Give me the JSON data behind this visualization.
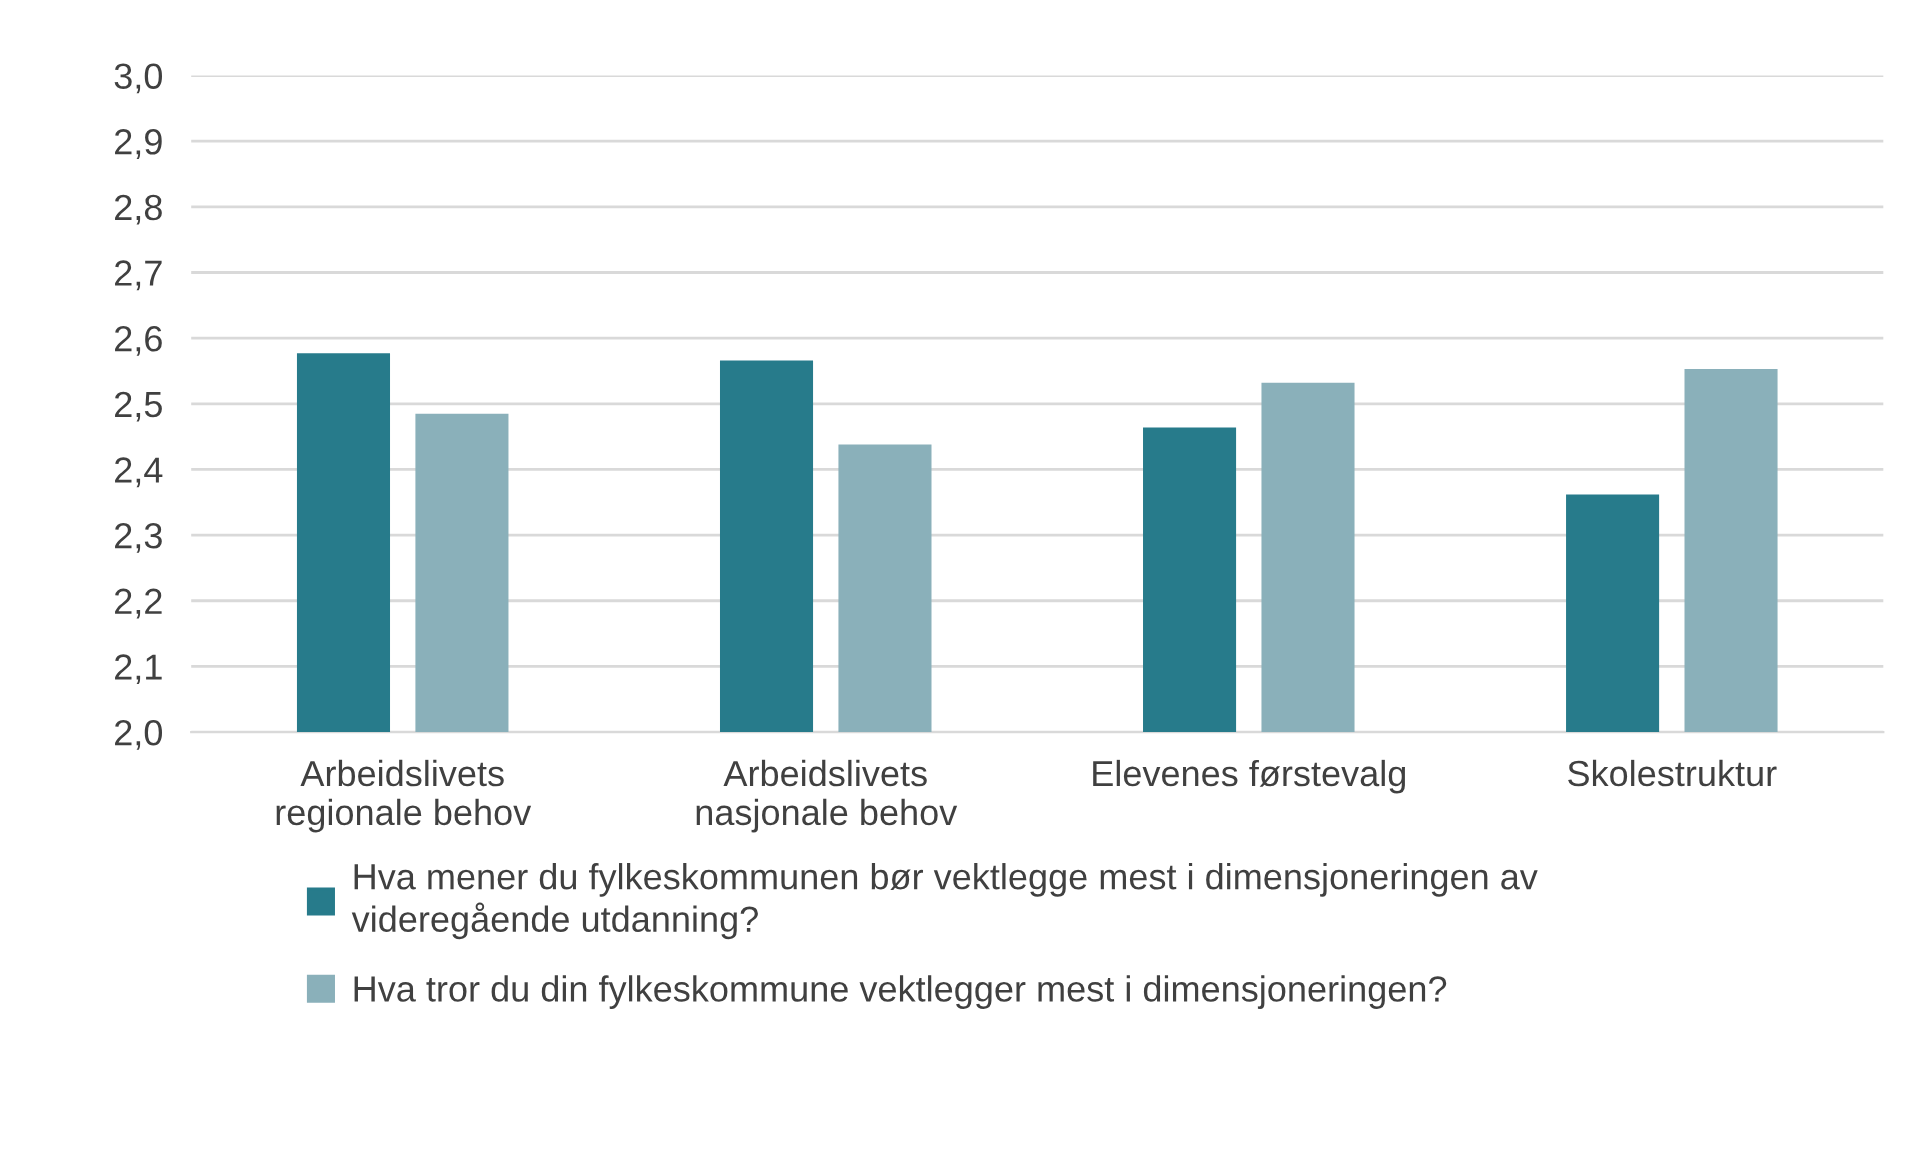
{
  "chart_data": {
    "type": "bar",
    "categories": [
      "Arbeidslivets\nregionale behov",
      "Arbeidslivets\nnasjonale behov",
      "Elevenes førstevalg",
      "Skolestruktur"
    ],
    "series": [
      {
        "name": "Hva mener du fylkeskommunen bør vektlegge mest i dimensjoneringen av\nvideregående utdanning?",
        "color": "#277b8b",
        "values": [
          2.577,
          2.566,
          2.464,
          2.362
        ]
      },
      {
        "name": "Hva tror du din fylkeskommune vektlegger mest i dimensjoneringen?",
        "color": "#8ab0ba",
        "values": [
          2.485,
          2.438,
          2.532,
          2.553
        ]
      }
    ],
    "ylim": [
      2.0,
      3.0
    ],
    "yticks": [
      {
        "value": 2.0,
        "label": "2,0"
      },
      {
        "value": 2.1,
        "label": "2,1"
      },
      {
        "value": 2.2,
        "label": "2,2"
      },
      {
        "value": 2.3,
        "label": "2,3"
      },
      {
        "value": 2.4,
        "label": "2,4"
      },
      {
        "value": 2.5,
        "label": "2,5"
      },
      {
        "value": 2.6,
        "label": "2,6"
      },
      {
        "value": 2.7,
        "label": "2,7"
      },
      {
        "value": 2.8,
        "label": "2,8"
      },
      {
        "value": 2.9,
        "label": "2,9"
      },
      {
        "value": 3.0,
        "label": "3,0"
      }
    ],
    "grid": "y",
    "legend": "bottom"
  }
}
